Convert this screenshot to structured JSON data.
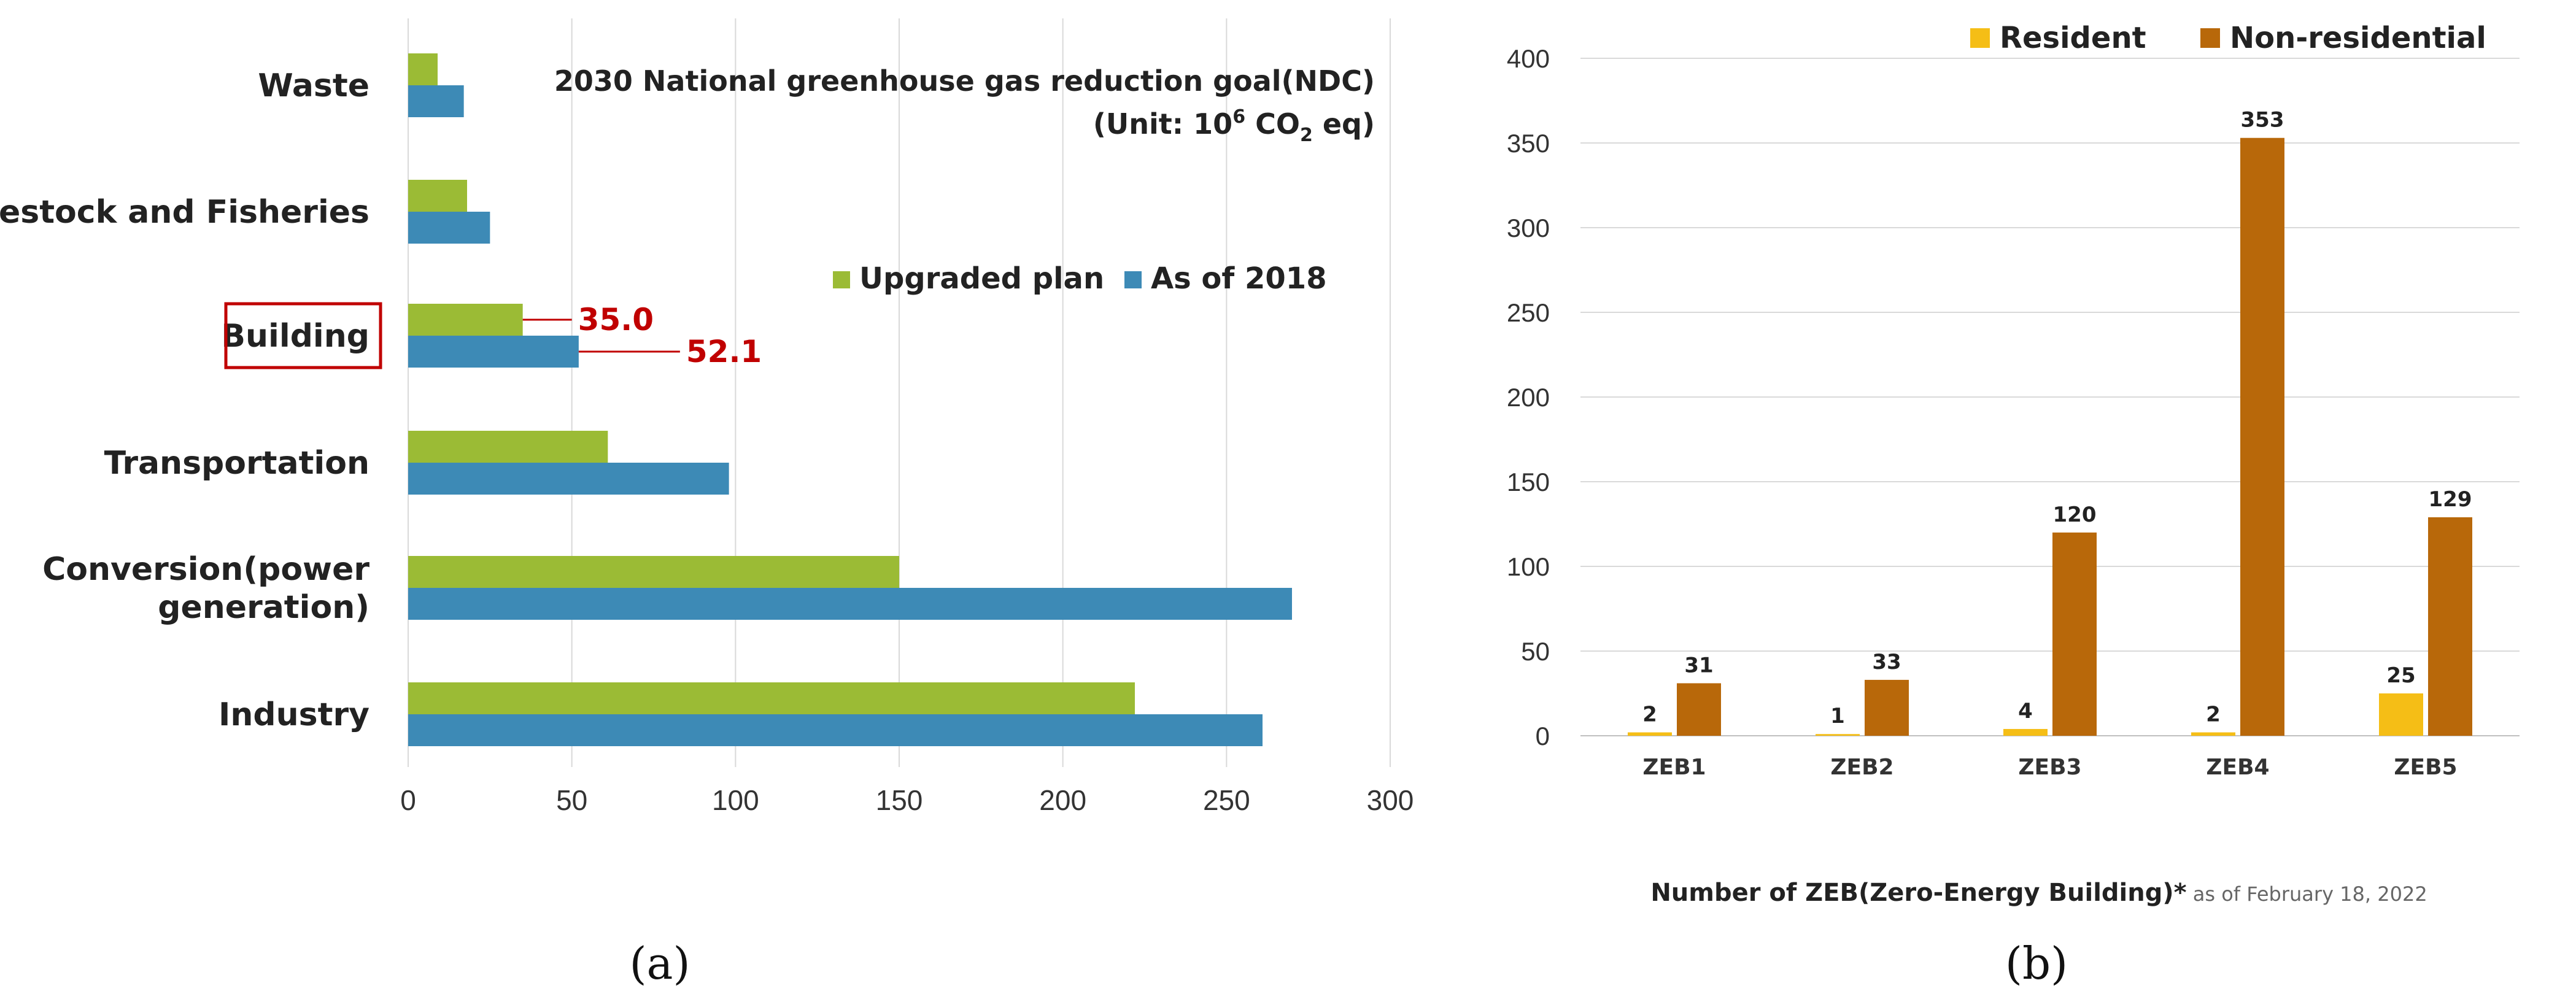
{
  "chart_data": [
    {
      "type": "bar",
      "orientation": "horizontal",
      "panel_label": "(a)",
      "title": "2030 National greenhouse gas reduction goal(NDC)",
      "unit": {
        "prefix": "(Unit: 10",
        "exp": "6",
        "mid": " CO",
        "sub": "2",
        "suffix": " eq)"
      },
      "categories": [
        "Waste",
        "Livestock and Fisheries",
        "Building",
        "Transportation",
        "Conversion(power generation)",
        "Industry"
      ],
      "category_lines": [
        [
          "Waste"
        ],
        [
          "Livestock and Fisheries"
        ],
        [
          "Building"
        ],
        [
          "Transportation"
        ],
        [
          "Conversion(power",
          "generation)"
        ],
        [
          "Industry"
        ]
      ],
      "series": [
        {
          "name": "Upgraded plan",
          "color": "#9bbb35",
          "values": [
            9,
            18,
            35.0,
            61,
            150,
            222
          ]
        },
        {
          "name": "As of 2018",
          "color": "#3d8ab6",
          "values": [
            17,
            25,
            52.1,
            98,
            270,
            261
          ]
        }
      ],
      "annotations": [
        {
          "category": "Building",
          "series": "Upgraded plan",
          "text": "35.0"
        },
        {
          "category": "Building",
          "series": "As of 2018",
          "text": "52.1"
        }
      ],
      "highlight_category": "Building",
      "highlight_color": "#c00000",
      "xlim": [
        0,
        300
      ],
      "xticks": [
        "0",
        "50",
        "100",
        "150",
        "200",
        "250",
        "300"
      ],
      "grid": true
    },
    {
      "type": "bar",
      "orientation": "vertical",
      "panel_label": "(b)",
      "categories": [
        "ZEB1",
        "ZEB2",
        "ZEB3",
        "ZEB4",
        "ZEB5"
      ],
      "series": [
        {
          "name": "Resident",
          "color": "#f5be16",
          "values": [
            2,
            1,
            4,
            2,
            25
          ]
        },
        {
          "name": "Non-residential",
          "color": "#b8680a",
          "values": [
            31,
            33,
            120,
            353,
            129
          ]
        }
      ],
      "xlabel": "Number of ZEB(Zero-Energy Building)*",
      "xlabel_note": " as of February 18, 2022",
      "ylim": [
        0,
        400
      ],
      "yticks": [
        "0",
        "50",
        "100",
        "150",
        "200",
        "250",
        "300",
        "350",
        "400"
      ],
      "legend_position": "top",
      "grid": true
    }
  ]
}
